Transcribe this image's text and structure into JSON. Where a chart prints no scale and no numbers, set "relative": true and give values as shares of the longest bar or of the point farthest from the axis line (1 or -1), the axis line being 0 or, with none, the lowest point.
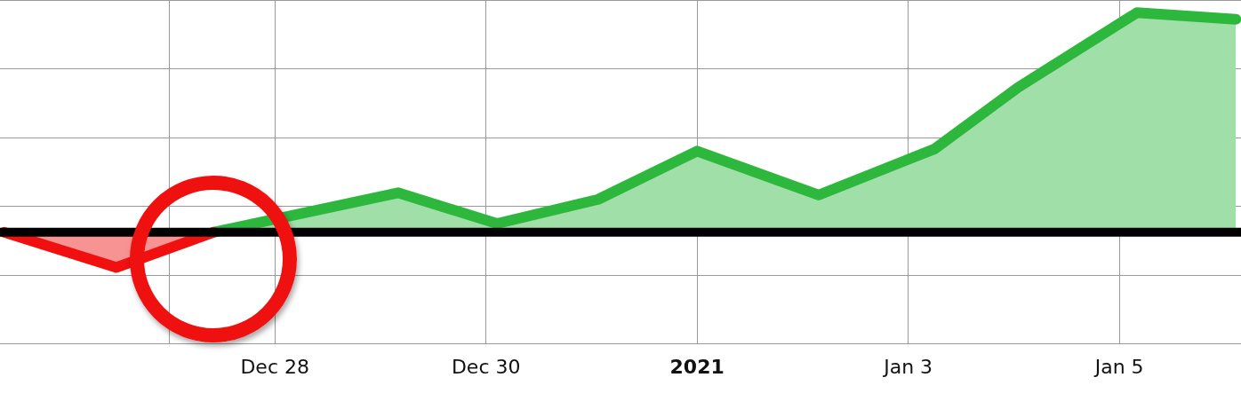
{
  "chart_data": {
    "type": "area",
    "relative": true,
    "series": [
      {
        "color": "#f01010",
        "x": [
          "2020-12-25T10:30",
          "2020-12-26T12:00",
          "2020-12-27T10:00"
        ],
        "values": [
          0,
          -0.16,
          0
        ]
      },
      {
        "color": "#2db83d",
        "x": [
          "2020-12-27T10:00",
          "2020-12-29T04:00",
          "2020-12-30T02:30",
          "2020-12-31T01:30",
          "2021-01-01T00:00",
          "2021-01-02T03:40",
          "2021-01-03T06:00",
          "2021-01-04T01:00",
          "2021-01-05T04:00",
          "2021-01-06T02:30"
        ],
        "values": [
          0,
          0.18,
          0.04,
          0.15,
          0.37,
          0.17,
          0.38,
          0.66,
          1,
          0.97
        ]
      }
    ],
    "xlim": [
      "2020-12-25T09:30",
      "2021-01-06T03:40"
    ],
    "xticks": [
      {
        "value": "2020-12-27",
        "label": null
      },
      {
        "value": "2020-12-28",
        "label": "Dec 28"
      },
      {
        "value": "2020-12-30",
        "label": "Dec 30"
      },
      {
        "value": "2021-01-01",
        "label": "2021"
      },
      {
        "value": "2021-01-03",
        "label": "Jan 3"
      },
      {
        "value": "2021-01-05",
        "label": "Jan 5"
      }
    ],
    "ref_lines": [
      {
        "axis": "y",
        "value": 0,
        "color": "#000000"
      }
    ],
    "grid": true,
    "legend": false,
    "marker": "none",
    "line_style": "solid"
  }
}
